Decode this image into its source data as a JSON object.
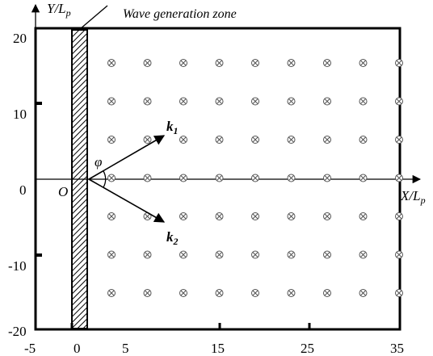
{
  "diagram": {
    "zone_label": "Wave generation zone",
    "y_axis_title": {
      "main": "Y/L",
      "sub": "p"
    },
    "x_axis_title": {
      "main": "X/L",
      "sub": "p"
    },
    "origin_label": "O",
    "angle_label": "φ",
    "vector_k1": {
      "main": "k",
      "sub": "1"
    },
    "vector_k2": {
      "main": "k",
      "sub": "2"
    },
    "x_ticks": [
      "-5",
      "0",
      "5",
      "15",
      "25",
      "35"
    ],
    "y_ticks": [
      "20",
      "10",
      "0",
      "-10",
      "-20"
    ],
    "gauge_columns": 9,
    "gauge_rows": 7
  }
}
